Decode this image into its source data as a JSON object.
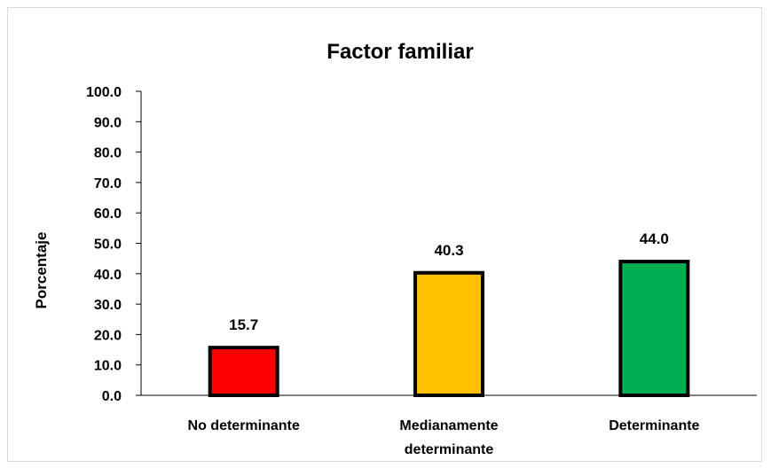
{
  "chart_data": {
    "type": "bar",
    "title": "Factor familiar",
    "ylabel": "Porcentaje",
    "xlabel": "",
    "categories": [
      [
        "No determinante"
      ],
      [
        "Medianamente",
        "determinante"
      ],
      [
        "Determinante"
      ]
    ],
    "values": [
      15.7,
      40.3,
      44.0
    ],
    "value_labels": [
      "15.7",
      "40.3",
      "44.0"
    ],
    "colors": [
      "#ff0000",
      "#ffc000",
      "#00b050"
    ],
    "bar_outline": "#000000",
    "ylim": [
      0,
      100
    ],
    "yticks": [
      0,
      10,
      20,
      30,
      40,
      50,
      60,
      70,
      80,
      90,
      100
    ],
    "ytick_labels": [
      "0.0",
      "10.0",
      "20.0",
      "30.0",
      "40.0",
      "50.0",
      "60.0",
      "70.0",
      "80.0",
      "90.0",
      "100.0"
    ],
    "grid": false,
    "legend": "none"
  }
}
